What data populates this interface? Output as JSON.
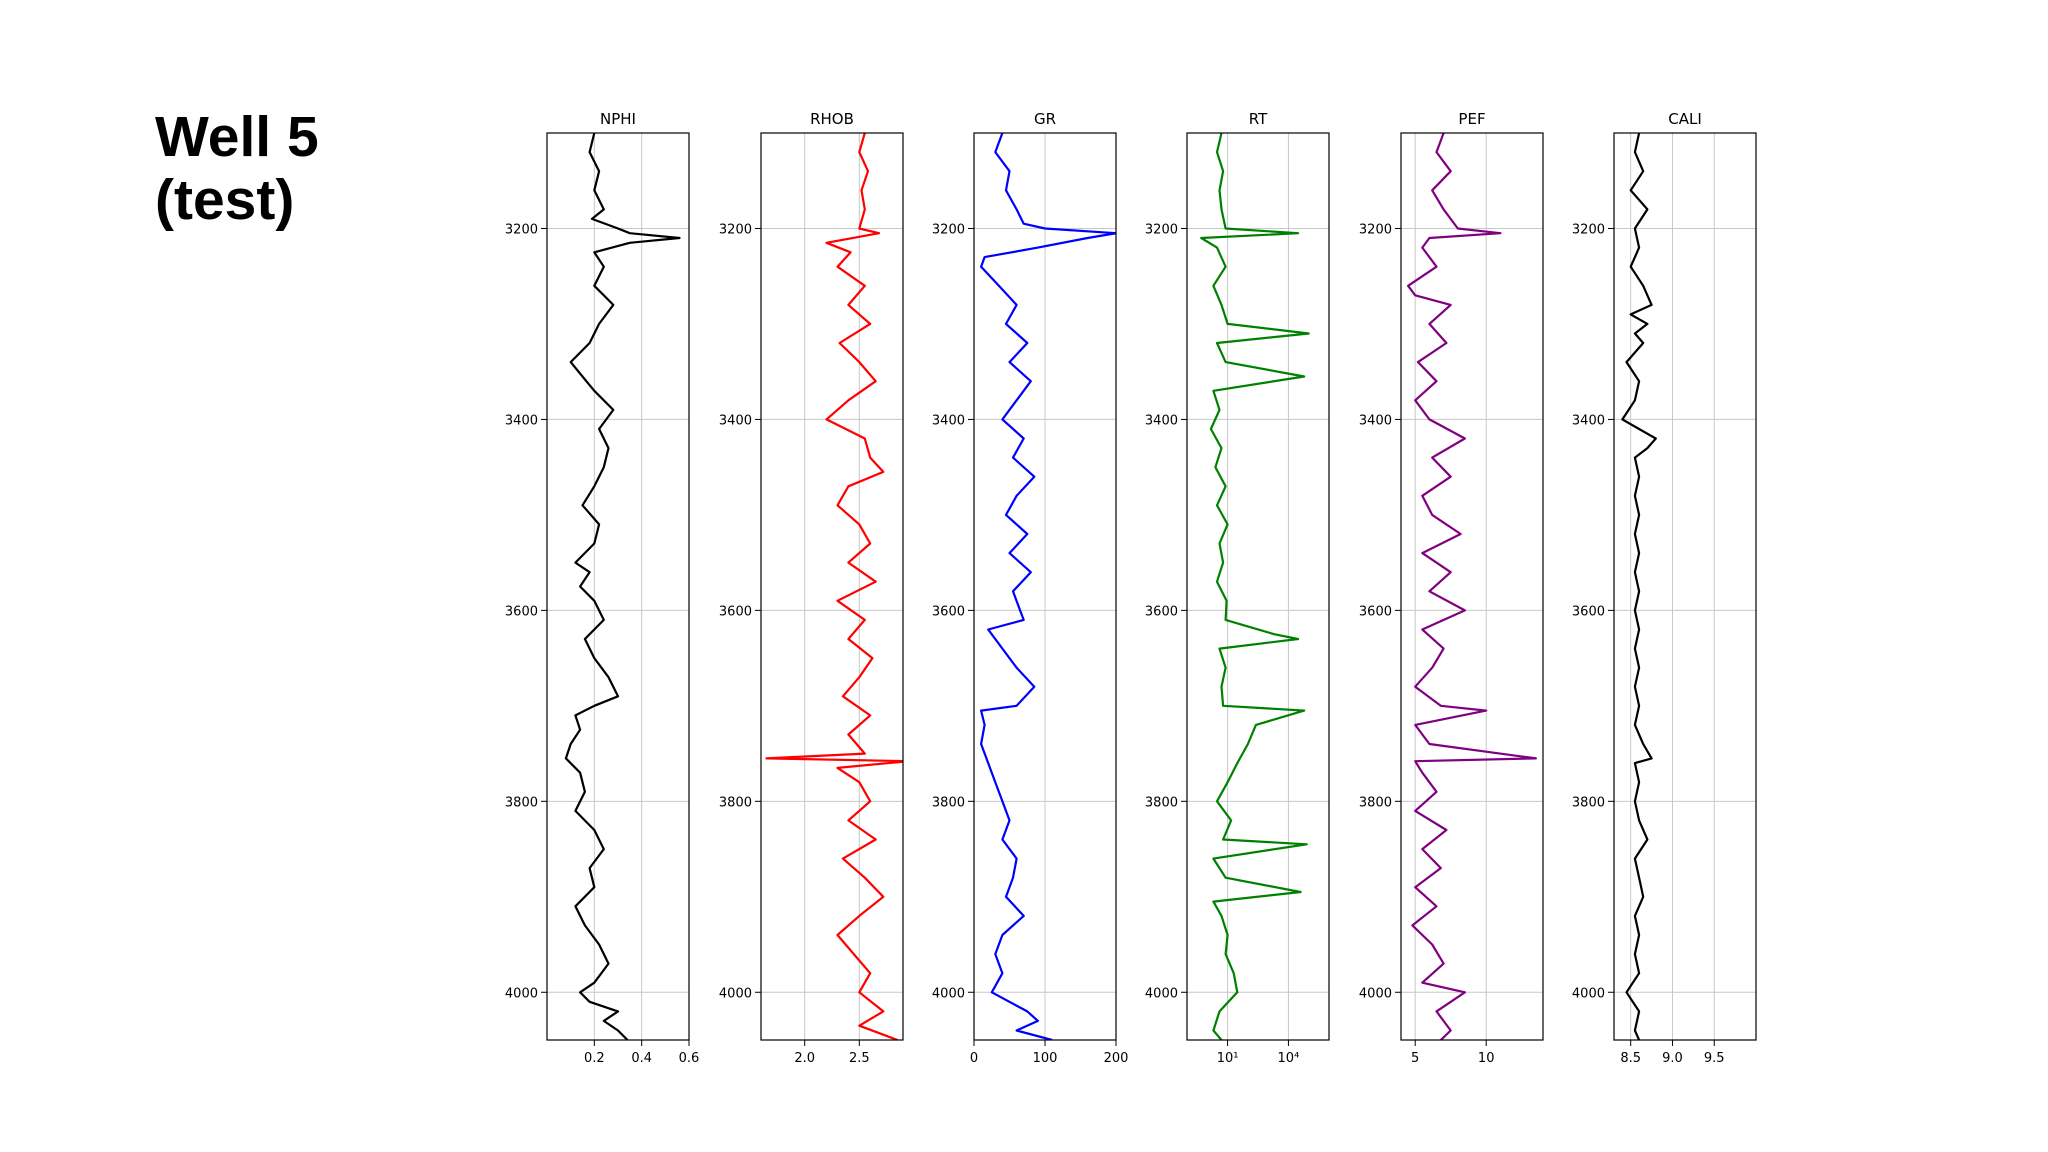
{
  "slide": {
    "title_line1": "Well 5",
    "title_line2": "(test)"
  },
  "chart_data": [
    {
      "type": "line",
      "title": "NPHI",
      "color": "#000000",
      "xscale": "linear",
      "xlim": [
        0.0,
        0.6
      ],
      "xticks": [
        0.2,
        0.4,
        0.6
      ],
      "xticklabels": [
        "0.2",
        "0.4",
        "0.6"
      ],
      "ylim": [
        4050,
        3100
      ],
      "yticks": [
        3200,
        3400,
        3600,
        3800,
        4000
      ],
      "yticklabels": [
        "3200",
        "3400",
        "3600",
        "3800",
        "4000"
      ],
      "grid": true,
      "depth": [
        3100,
        3120,
        3140,
        3160,
        3180,
        3190,
        3200,
        3205,
        3210,
        3215,
        3225,
        3240,
        3260,
        3280,
        3300,
        3320,
        3340,
        3355,
        3370,
        3390,
        3410,
        3430,
        3450,
        3470,
        3490,
        3510,
        3530,
        3550,
        3560,
        3575,
        3590,
        3610,
        3630,
        3650,
        3670,
        3690,
        3700,
        3710,
        3725,
        3740,
        3755,
        3770,
        3790,
        3810,
        3830,
        3850,
        3870,
        3890,
        3910,
        3930,
        3950,
        3970,
        3990,
        4000,
        4010,
        4020,
        4030,
        4040,
        4050
      ],
      "x": [
        0.2,
        0.18,
        0.22,
        0.2,
        0.24,
        0.19,
        0.3,
        0.35,
        0.56,
        0.35,
        0.2,
        0.24,
        0.2,
        0.28,
        0.22,
        0.18,
        0.1,
        0.15,
        0.2,
        0.28,
        0.22,
        0.26,
        0.24,
        0.2,
        0.15,
        0.22,
        0.2,
        0.12,
        0.18,
        0.14,
        0.2,
        0.24,
        0.16,
        0.2,
        0.26,
        0.3,
        0.2,
        0.12,
        0.14,
        0.1,
        0.08,
        0.14,
        0.16,
        0.12,
        0.2,
        0.24,
        0.18,
        0.2,
        0.12,
        0.16,
        0.22,
        0.26,
        0.2,
        0.14,
        0.18,
        0.3,
        0.24,
        0.3,
        0.34
      ]
    },
    {
      "type": "line",
      "title": "RHOB",
      "color": "#ff0000",
      "xscale": "linear",
      "xlim": [
        1.6,
        2.9
      ],
      "xticks": [
        2.0,
        2.5
      ],
      "xticklabels": [
        "2.0",
        "2.5"
      ],
      "ylim": [
        4050,
        3100
      ],
      "yticks": [
        3200,
        3400,
        3600,
        3800,
        4000
      ],
      "yticklabels": [
        "3200",
        "3400",
        "3600",
        "3800",
        "4000"
      ],
      "grid": true,
      "depth": [
        3100,
        3120,
        3140,
        3160,
        3180,
        3200,
        3205,
        3215,
        3225,
        3240,
        3260,
        3280,
        3300,
        3320,
        3340,
        3360,
        3380,
        3400,
        3420,
        3440,
        3455,
        3470,
        3490,
        3510,
        3530,
        3550,
        3570,
        3590,
        3610,
        3630,
        3650,
        3670,
        3690,
        3710,
        3730,
        3750,
        3755,
        3758,
        3765,
        3780,
        3800,
        3820,
        3840,
        3860,
        3880,
        3900,
        3920,
        3940,
        3960,
        3980,
        4000,
        4020,
        4035,
        4050
      ],
      "x": [
        2.55,
        2.5,
        2.58,
        2.52,
        2.55,
        2.5,
        2.68,
        2.2,
        2.42,
        2.3,
        2.55,
        2.4,
        2.6,
        2.32,
        2.5,
        2.65,
        2.4,
        2.2,
        2.55,
        2.6,
        2.72,
        2.4,
        2.3,
        2.5,
        2.6,
        2.4,
        2.65,
        2.3,
        2.55,
        2.4,
        2.62,
        2.5,
        2.35,
        2.6,
        2.4,
        2.55,
        1.65,
        2.95,
        2.3,
        2.5,
        2.6,
        2.4,
        2.65,
        2.35,
        2.55,
        2.72,
        2.5,
        2.3,
        2.45,
        2.6,
        2.5,
        2.72,
        2.5,
        2.85
      ]
    },
    {
      "type": "line",
      "title": "GR",
      "color": "#0000ff",
      "xscale": "linear",
      "xlim": [
        0,
        200
      ],
      "xticks": [
        0,
        100,
        200
      ],
      "xticklabels": [
        "0",
        "100",
        "200"
      ],
      "ylim": [
        4050,
        3100
      ],
      "yticks": [
        3200,
        3400,
        3600,
        3800,
        4000
      ],
      "yticklabels": [
        "3200",
        "3400",
        "3600",
        "3800",
        "4000"
      ],
      "grid": true,
      "depth": [
        3100,
        3120,
        3140,
        3160,
        3180,
        3195,
        3200,
        3205,
        3210,
        3220,
        3230,
        3240,
        3260,
        3280,
        3300,
        3320,
        3340,
        3360,
        3380,
        3400,
        3420,
        3440,
        3460,
        3480,
        3500,
        3520,
        3540,
        3560,
        3580,
        3600,
        3610,
        3620,
        3640,
        3660,
        3680,
        3700,
        3705,
        3720,
        3740,
        3760,
        3780,
        3800,
        3820,
        3840,
        3860,
        3880,
        3900,
        3920,
        3940,
        3960,
        3980,
        4000,
        4020,
        4030,
        4040,
        4050
      ],
      "x": [
        40,
        30,
        50,
        45,
        60,
        70,
        100,
        200,
        160,
        90,
        15,
        10,
        35,
        60,
        45,
        75,
        50,
        80,
        60,
        40,
        70,
        55,
        85,
        60,
        45,
        75,
        50,
        80,
        55,
        65,
        70,
        20,
        40,
        60,
        85,
        60,
        10,
        15,
        10,
        20,
        30,
        40,
        50,
        40,
        60,
        55,
        45,
        70,
        40,
        30,
        40,
        25,
        75,
        90,
        60,
        110
      ]
    },
    {
      "type": "line",
      "title": "RT",
      "color": "#008000",
      "xscale": "log",
      "xlim": [
        0.1,
        1000000
      ],
      "xticks": [
        10,
        10000
      ],
      "xticklabels": [
        "10¹",
        "10⁴"
      ],
      "ylim": [
        4050,
        3100
      ],
      "yticks": [
        3200,
        3400,
        3600,
        3800,
        4000
      ],
      "yticklabels": [
        "3200",
        "3400",
        "3600",
        "3800",
        "4000"
      ],
      "grid": true,
      "depth": [
        3100,
        3120,
        3140,
        3160,
        3180,
        3200,
        3205,
        3210,
        3220,
        3240,
        3260,
        3280,
        3300,
        3310,
        3320,
        3340,
        3355,
        3370,
        3390,
        3410,
        3430,
        3450,
        3470,
        3490,
        3510,
        3530,
        3550,
        3570,
        3590,
        3610,
        3625,
        3630,
        3640,
        3660,
        3680,
        3700,
        3705,
        3720,
        3740,
        3760,
        3780,
        3800,
        3820,
        3840,
        3845,
        3860,
        3880,
        3895,
        3905,
        3920,
        3940,
        3960,
        3980,
        4000,
        4020,
        4040,
        4050
      ],
      "x": [
        5,
        3,
        6,
        4,
        5,
        8,
        30000,
        0.5,
        3,
        8,
        2,
        5,
        10,
        100000,
        3,
        8,
        60000,
        2,
        4,
        1.5,
        5,
        2.5,
        8,
        3,
        10,
        4,
        6,
        3,
        9,
        8,
        2000,
        30000,
        4,
        8,
        5,
        6,
        60000,
        250,
        100,
        30,
        10,
        3,
        15,
        6,
        80000,
        2,
        8,
        40000,
        2,
        5,
        10,
        8,
        20,
        30,
        4,
        2,
        5
      ]
    },
    {
      "type": "line",
      "title": "PEF",
      "color": "#800080",
      "xscale": "linear",
      "xlim": [
        4,
        14
      ],
      "xticks": [
        5,
        10
      ],
      "xticklabels": [
        "5",
        "10"
      ],
      "ylim": [
        4050,
        3100
      ],
      "yticks": [
        3200,
        3400,
        3600,
        3800,
        4000
      ],
      "yticklabels": [
        "3200",
        "3400",
        "3600",
        "3800",
        "4000"
      ],
      "grid": true,
      "depth": [
        3100,
        3120,
        3140,
        3160,
        3180,
        3200,
        3205,
        3210,
        3220,
        3240,
        3260,
        3270,
        3280,
        3300,
        3320,
        3340,
        3360,
        3380,
        3400,
        3420,
        3440,
        3460,
        3480,
        3500,
        3520,
        3540,
        3560,
        3580,
        3600,
        3620,
        3640,
        3660,
        3680,
        3700,
        3705,
        3720,
        3740,
        3755,
        3758,
        3770,
        3790,
        3810,
        3830,
        3850,
        3870,
        3890,
        3910,
        3930,
        3950,
        3970,
        3990,
        4000,
        4020,
        4040,
        4050
      ],
      "x": [
        7,
        6.5,
        7.5,
        6.2,
        7,
        8,
        11,
        6,
        5.5,
        6.5,
        4.5,
        5,
        7.5,
        6,
        7.2,
        5.2,
        6.5,
        5,
        6,
        8.5,
        6.2,
        7.5,
        5.5,
        6.2,
        8.2,
        5.5,
        7.5,
        6,
        8.5,
        5.5,
        7,
        6.2,
        5,
        6.8,
        10,
        5,
        6,
        13.5,
        5,
        5.5,
        6.5,
        5,
        7.2,
        5.5,
        6.8,
        5,
        6.5,
        4.8,
        6.2,
        7,
        5.5,
        8.5,
        6.5,
        7.5,
        6.8
      ]
    },
    {
      "type": "line",
      "title": "CALI",
      "color": "#000000",
      "xscale": "linear",
      "xlim": [
        8.3,
        10.0
      ],
      "xticks": [
        8.5,
        9.0,
        9.5
      ],
      "xticklabels": [
        "8.5",
        "9.0",
        "9.5"
      ],
      "ylim": [
        4050,
        3100
      ],
      "yticks": [
        3200,
        3400,
        3600,
        3800,
        4000
      ],
      "yticklabels": [
        "3200",
        "3400",
        "3600",
        "3800",
        "4000"
      ],
      "grid": true,
      "depth": [
        3100,
        3120,
        3140,
        3160,
        3180,
        3200,
        3220,
        3240,
        3260,
        3280,
        3290,
        3300,
        3310,
        3320,
        3340,
        3360,
        3380,
        3400,
        3410,
        3420,
        3430,
        3440,
        3460,
        3480,
        3500,
        3520,
        3540,
        3560,
        3580,
        3600,
        3620,
        3640,
        3660,
        3680,
        3700,
        3720,
        3740,
        3755,
        3760,
        3780,
        3800,
        3820,
        3840,
        3860,
        3880,
        3900,
        3920,
        3940,
        3960,
        3980,
        4000,
        4020,
        4040,
        4050
      ],
      "x": [
        8.6,
        8.55,
        8.65,
        8.5,
        8.7,
        8.55,
        8.6,
        8.5,
        8.65,
        8.75,
        8.5,
        8.7,
        8.55,
        8.65,
        8.45,
        8.6,
        8.55,
        8.4,
        8.6,
        8.8,
        8.7,
        8.55,
        8.6,
        8.55,
        8.6,
        8.55,
        8.6,
        8.55,
        8.6,
        8.55,
        8.6,
        8.55,
        8.6,
        8.55,
        8.6,
        8.55,
        8.65,
        8.75,
        8.55,
        8.6,
        8.55,
        8.6,
        8.7,
        8.55,
        8.6,
        8.65,
        8.55,
        8.6,
        8.55,
        8.6,
        8.45,
        8.6,
        8.55,
        8.6
      ]
    }
  ]
}
